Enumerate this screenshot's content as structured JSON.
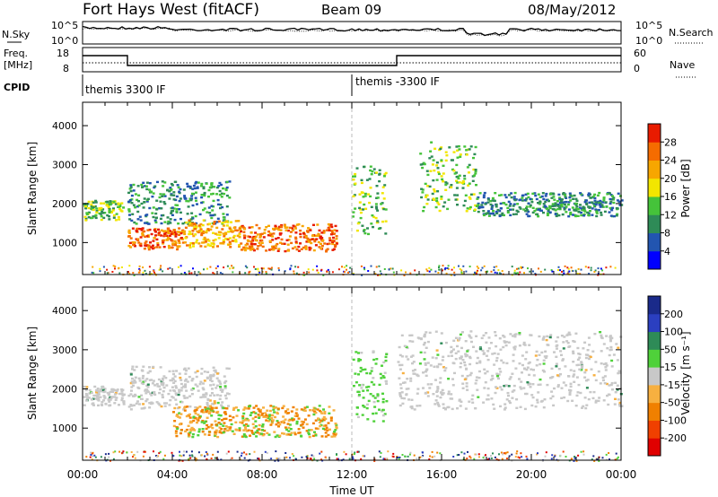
{
  "header": {
    "station": "Fort Hays West (fitACF)",
    "beam": "Beam 09",
    "date": "08/May/2012"
  },
  "noise_panel": {
    "left_label": "N.Sky",
    "right_label": "N.Search",
    "ticks": [
      "10^5",
      "10^0"
    ]
  },
  "freq_panel": {
    "left_label_1": "Freq.",
    "left_label_2": "[MHz]",
    "right_label": "Nave",
    "left_ticks": [
      "18",
      "8"
    ],
    "right_ticks": [
      "60",
      "0"
    ]
  },
  "cpid": {
    "label": "CPID",
    "modes": [
      "themis 3300 IF",
      "themis -3300 IF"
    ]
  },
  "colors": {
    "scatter_blue": "#1f3fd0",
    "scatter_green": "#2d9a3a",
    "scatter_orange": "#f0a010",
    "scatter_red": "#e01010",
    "ground_gray": "#c0c0c0"
  },
  "chart_data": [
    {
      "type": "heatmap",
      "name": "power",
      "ylabel": "Slant Range [km]",
      "xlabel": "Time UT",
      "xlim": [
        "00:00",
        "24:00"
      ],
      "ylim": [
        180,
        4600
      ],
      "x_ticks": [
        "00:00",
        "04:00",
        "08:00",
        "12:00",
        "16:00",
        "20:00",
        "00:00"
      ],
      "y_ticks": [
        "1000",
        "2000",
        "3000",
        "4000"
      ],
      "colorbar": {
        "label": "Power [dB]",
        "ticks": [
          "4",
          "8",
          "12",
          "16",
          "20",
          "24",
          "28"
        ],
        "colors": [
          "#0000ff",
          "#2255b0",
          "#2e8b57",
          "#45c33a",
          "#f2e600",
          "#f7a600",
          "#f56c00",
          "#e81b00"
        ]
      },
      "bands": [
        {
          "t0": 0.0,
          "t1": 1.8,
          "r0": 1600,
          "r1": 2100,
          "level": 3
        },
        {
          "t0": 2.0,
          "t1": 6.5,
          "r0": 1500,
          "r1": 2600,
          "level": 2
        },
        {
          "t0": 2.0,
          "t1": 4.5,
          "r0": 850,
          "r1": 1400,
          "level": 6
        },
        {
          "t0": 4.5,
          "t1": 7.0,
          "r0": 900,
          "r1": 1600,
          "level": 5
        },
        {
          "t0": 7.0,
          "t1": 11.3,
          "r0": 800,
          "r1": 1500,
          "level": 6
        },
        {
          "t0": 12.0,
          "t1": 13.5,
          "r0": 1200,
          "r1": 3000,
          "level": 3
        },
        {
          "t0": 15.0,
          "t1": 17.5,
          "r0": 1800,
          "r1": 3600,
          "level": 3
        },
        {
          "t0": 17.5,
          "t1": 24.0,
          "r0": 1700,
          "r1": 2300,
          "level": 2
        }
      ]
    },
    {
      "type": "heatmap",
      "name": "velocity",
      "ylabel": "Slant Range [km]",
      "xlabel": "Time UT",
      "xlim": [
        "00:00",
        "24:00"
      ],
      "ylim": [
        180,
        4600
      ],
      "x_ticks": [
        "00:00",
        "04:00",
        "08:00",
        "12:00",
        "16:00",
        "20:00",
        "00:00"
      ],
      "y_ticks": [
        "1000",
        "2000",
        "3000",
        "4000"
      ],
      "colorbar": {
        "label": "Velocity [m s⁻¹]",
        "ticks": [
          "200",
          "100",
          "50",
          "15",
          "-15",
          "-50",
          "-100",
          "-200"
        ],
        "colors": [
          "#1a2a8a",
          "#2b3fc0",
          "#2e8b57",
          "#4fd13a",
          "#c8c8c8",
          "#f7b040",
          "#f08000",
          "#f04000",
          "#e00000"
        ]
      },
      "bands": [
        {
          "t0": 0.0,
          "t1": 1.8,
          "r0": 1600,
          "r1": 2100,
          "level": "gray"
        },
        {
          "t0": 2.0,
          "t1": 6.5,
          "r0": 1500,
          "r1": 2600,
          "level": "gray"
        },
        {
          "t0": 4.0,
          "t1": 11.3,
          "r0": 800,
          "r1": 1600,
          "level": "orange"
        },
        {
          "t0": 12.0,
          "t1": 13.5,
          "r0": 1200,
          "r1": 3000,
          "level": "green"
        },
        {
          "t0": 14.0,
          "t1": 24.0,
          "r0": 1500,
          "r1": 3500,
          "level": "gray"
        }
      ]
    }
  ]
}
